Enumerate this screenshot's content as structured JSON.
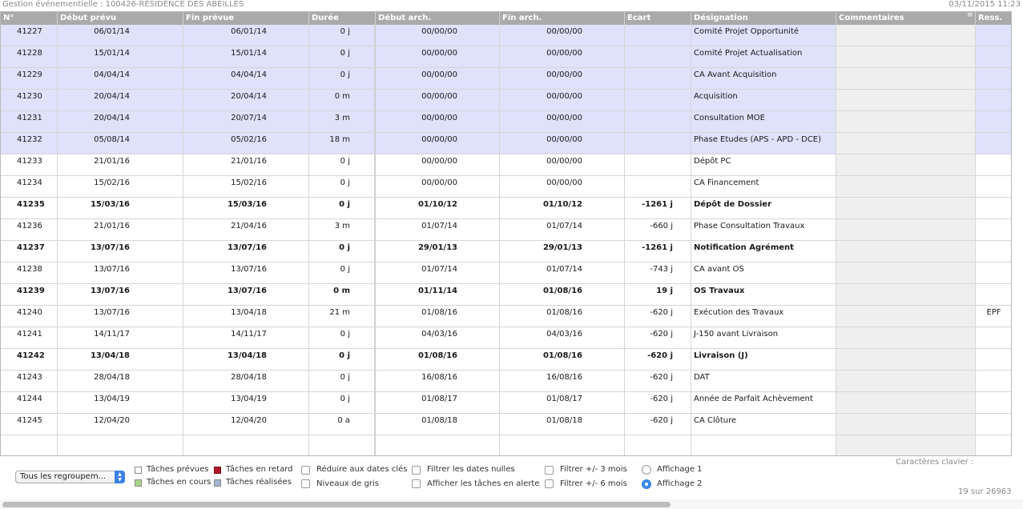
{
  "window": {
    "title": "Gestion événementielle : 100426-RESIDENCE DES ABEILLES",
    "datetime": "03/11/2015 11:23"
  },
  "columns": [
    "N°",
    "Début prévu",
    "Fin prévue",
    "Durée",
    "Début arch.",
    "Fin arch.",
    "Ecart",
    "Désignation",
    "Commentaires",
    "Ress."
  ],
  "rows": [
    {
      "id": "41227",
      "debut": "06/01/14",
      "fin": "06/01/14",
      "duree": "0 j",
      "debut_arch": "00/00/00",
      "fin_arch": "00/00/00",
      "ecart": "",
      "designation": "Comité Projet Opportunité",
      "commentaires": "",
      "ress": "",
      "shaded": true,
      "bold": false
    },
    {
      "id": "41228",
      "debut": "15/01/14",
      "fin": "15/01/14",
      "duree": "0 j",
      "debut_arch": "00/00/00",
      "fin_arch": "00/00/00",
      "ecart": "",
      "designation": "Comité Projet Actualisation",
      "commentaires": "",
      "ress": "",
      "shaded": true,
      "bold": false
    },
    {
      "id": "41229",
      "debut": "04/04/14",
      "fin": "04/04/14",
      "duree": "0 j",
      "debut_arch": "00/00/00",
      "fin_arch": "00/00/00",
      "ecart": "",
      "designation": "CA Avant Acquisition",
      "commentaires": "",
      "ress": "",
      "shaded": true,
      "bold": false
    },
    {
      "id": "41230",
      "debut": "20/04/14",
      "fin": "20/04/14",
      "duree": "0 m",
      "debut_arch": "00/00/00",
      "fin_arch": "00/00/00",
      "ecart": "",
      "designation": "Acquisition",
      "commentaires": "",
      "ress": "",
      "shaded": true,
      "bold": false
    },
    {
      "id": "41231",
      "debut": "20/04/14",
      "fin": "20/07/14",
      "duree": "3 m",
      "debut_arch": "00/00/00",
      "fin_arch": "00/00/00",
      "ecart": "",
      "designation": "Consultation MOE",
      "commentaires": "",
      "ress": "",
      "shaded": true,
      "bold": false
    },
    {
      "id": "41232",
      "debut": "05/08/14",
      "fin": "05/02/16",
      "duree": "18 m",
      "debut_arch": "00/00/00",
      "fin_arch": "00/00/00",
      "ecart": "",
      "designation": "Phase Etudes (APS - APD - DCE)",
      "commentaires": "",
      "ress": "",
      "shaded": true,
      "bold": false
    },
    {
      "id": "41233",
      "debut": "21/01/16",
      "fin": "21/01/16",
      "duree": "0 j",
      "debut_arch": "00/00/00",
      "fin_arch": "00/00/00",
      "ecart": "",
      "designation": "Dépôt PC",
      "commentaires": "",
      "ress": "",
      "shaded": false,
      "bold": false
    },
    {
      "id": "41234",
      "debut": "15/02/16",
      "fin": "15/02/16",
      "duree": "0 j",
      "debut_arch": "00/00/00",
      "fin_arch": "00/00/00",
      "ecart": "",
      "designation": "CA Financement",
      "commentaires": "",
      "ress": "",
      "shaded": false,
      "bold": false
    },
    {
      "id": "41235",
      "debut": "15/03/16",
      "fin": "15/03/16",
      "duree": "0 j",
      "debut_arch": "01/10/12",
      "fin_arch": "01/10/12",
      "ecart": "-1261 j",
      "designation": "Dépôt de Dossier",
      "commentaires": "",
      "ress": "",
      "shaded": false,
      "bold": true
    },
    {
      "id": "41236",
      "debut": "21/01/16",
      "fin": "21/04/16",
      "duree": "3 m",
      "debut_arch": "01/07/14",
      "fin_arch": "01/07/14",
      "ecart": "-660 j",
      "designation": "Phase Consultation Travaux",
      "commentaires": "",
      "ress": "",
      "shaded": false,
      "bold": false
    },
    {
      "id": "41237",
      "debut": "13/07/16",
      "fin": "13/07/16",
      "duree": "0 j",
      "debut_arch": "29/01/13",
      "fin_arch": "29/01/13",
      "ecart": "-1261 j",
      "designation": "Notification Agrément",
      "commentaires": "",
      "ress": "",
      "shaded": false,
      "bold": true
    },
    {
      "id": "41238",
      "debut": "13/07/16",
      "fin": "13/07/16",
      "duree": "0 j",
      "debut_arch": "01/07/14",
      "fin_arch": "01/07/14",
      "ecart": "-743 j",
      "designation": "CA avant OS",
      "commentaires": "",
      "ress": "",
      "shaded": false,
      "bold": false
    },
    {
      "id": "41239",
      "debut": "13/07/16",
      "fin": "13/07/16",
      "duree": "0 m",
      "debut_arch": "01/11/14",
      "fin_arch": "01/08/16",
      "ecart": "19 j",
      "designation": "OS Travaux",
      "commentaires": "",
      "ress": "",
      "shaded": false,
      "bold": true
    },
    {
      "id": "41240",
      "debut": "13/07/16",
      "fin": "13/04/18",
      "duree": "21 m",
      "debut_arch": "01/08/16",
      "fin_arch": "01/08/16",
      "ecart": "-620 j",
      "designation": "Exécution des Travaux",
      "commentaires": "",
      "ress": "EPF",
      "shaded": false,
      "bold": false
    },
    {
      "id": "41241",
      "debut": "14/11/17",
      "fin": "14/11/17",
      "duree": "0 j",
      "debut_arch": "04/03/16",
      "fin_arch": "04/03/16",
      "ecart": "-620 j",
      "designation": "J-150 avant Livraison",
      "commentaires": "",
      "ress": "",
      "shaded": false,
      "bold": false
    },
    {
      "id": "41242",
      "debut": "13/04/18",
      "fin": "13/04/18",
      "duree": "0 j",
      "debut_arch": "01/08/16",
      "fin_arch": "01/08/16",
      "ecart": "-620 j",
      "designation": "Livraison (J)",
      "commentaires": "",
      "ress": "",
      "shaded": false,
      "bold": true
    },
    {
      "id": "41243",
      "debut": "28/04/18",
      "fin": "28/04/18",
      "duree": "0 j",
      "debut_arch": "16/08/16",
      "fin_arch": "16/08/16",
      "ecart": "-620 j",
      "designation": "DAT",
      "commentaires": "",
      "ress": "",
      "shaded": false,
      "bold": false
    },
    {
      "id": "41244",
      "debut": "13/04/19",
      "fin": "13/04/19",
      "duree": "0 j",
      "debut_arch": "01/08/17",
      "fin_arch": "01/08/17",
      "ecart": "-620 j",
      "designation": "Année de Parfait Achèvement",
      "commentaires": "",
      "ress": "",
      "shaded": false,
      "bold": false
    },
    {
      "id": "41245",
      "debut": "12/04/20",
      "fin": "12/04/20",
      "duree": "0 a",
      "debut_arch": "01/08/18",
      "fin_arch": "01/08/18",
      "ecart": "-620 j",
      "designation": "CA Clôture",
      "commentaires": "",
      "ress": "",
      "shaded": false,
      "bold": false
    }
  ],
  "footer": {
    "grouping_select": "Tous les regroupem...",
    "legend": {
      "planned": "Tâches prévues",
      "late": "Tâches en retard",
      "in_progress": "Tâches en cours",
      "done": "Tâches réalisées"
    },
    "options": {
      "key_dates": "Réduire aux dates clés",
      "gray_levels": "Niveaux de gris",
      "filter_null": "Filtrer les dates nulles",
      "show_alerts": "Afficher les tâches en alerte",
      "filter_3m": "Filtrer +/- 3 mois",
      "filter_6m": "Filtrer +/- 6 mois"
    },
    "display": {
      "option1": "Affichage 1",
      "option2": "Affichage 2",
      "selected": "Affichage 2"
    },
    "keyboard_label": "Caractères clavier :",
    "record_counter": "19 sur 26963"
  },
  "colors": {
    "header_bg": "#aaaaaa",
    "shaded_row": "#e0e1fb",
    "comment_col": "#efefef",
    "legend_planned": "#ffffff",
    "legend_late": "#b0182a",
    "legend_in_progress": "#a8d585",
    "legend_done": "#a7b6d1",
    "radio_selected": "#3b8cf0"
  }
}
